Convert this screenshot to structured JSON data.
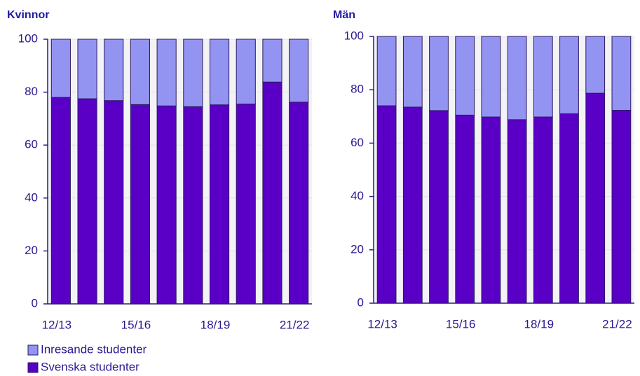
{
  "chart_data": [
    {
      "type": "bar",
      "stacked": true,
      "title": "Kvinnor",
      "categories": [
        "12/13",
        null,
        null,
        "15/16",
        null,
        null,
        "18/19",
        null,
        null,
        "21/22"
      ],
      "series": [
        {
          "name": "Svenska studenter",
          "color": "#5a00c6",
          "values": [
            78,
            77.5,
            76.8,
            75.3,
            74.8,
            74.5,
            75.2,
            75.5,
            83.8,
            76.2
          ]
        },
        {
          "name": "Inresande studenter",
          "color": "#9393f2",
          "values": [
            22,
            22.5,
            23.2,
            24.7,
            25.2,
            25.5,
            24.8,
            24.5,
            16.2,
            23.8
          ]
        }
      ],
      "ylim": [
        0,
        100
      ],
      "yticks": [
        0,
        20,
        40,
        60,
        80,
        100
      ],
      "grid": true
    },
    {
      "type": "bar",
      "stacked": true,
      "title": "Män",
      "categories": [
        "12/13",
        null,
        null,
        "15/16",
        null,
        null,
        "18/19",
        null,
        null,
        "21/22"
      ],
      "series": [
        {
          "color": "#5a00c6",
          "values": [
            74,
            73.5,
            72.2,
            70.5,
            69.8,
            68.8,
            69.8,
            71,
            78.7,
            72.3
          ]
        },
        {
          "color": "#9393f2",
          "values": [
            26,
            26.5,
            27.8,
            29.5,
            30.2,
            31.2,
            30.2,
            29,
            21.3,
            27.7
          ]
        }
      ],
      "ylim": [
        0,
        100
      ],
      "yticks": [
        0,
        20,
        40,
        60,
        80,
        100
      ],
      "grid": true
    }
  ]
}
